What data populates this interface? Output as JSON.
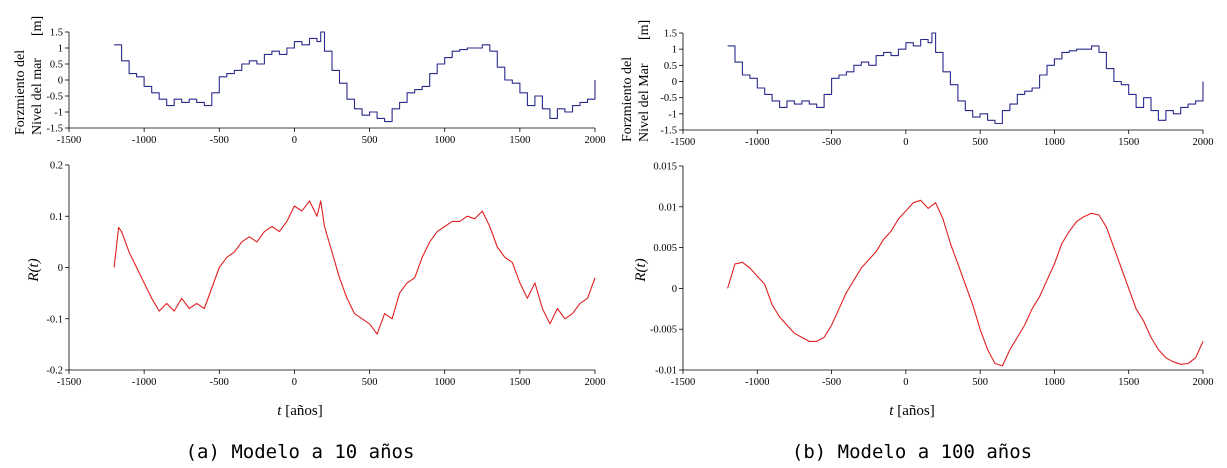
{
  "captions": [
    "(a) Modelo a 10 años",
    "(b) Modelo a 100 años"
  ],
  "colors": {
    "forcing": "#2a2a8c",
    "response": "#e02020"
  },
  "chart_data": [
    {
      "type": "line",
      "panel": "a-top",
      "ylabel_lines": [
        "Forzmiento del",
        "Nivel del mar"
      ],
      "yunit": "[m]",
      "xlim": [
        -1500,
        2000
      ],
      "ylim": [
        -1.5,
        1.5
      ],
      "xticks": [
        "-1500",
        "-1000",
        "-500",
        "0",
        "500",
        "1000",
        "1500",
        "2000"
      ],
      "yticks": [
        "1.5",
        "1",
        "0.5",
        "0",
        "-0.5",
        "-1",
        "-1.5"
      ],
      "step": true,
      "series": [
        {
          "x": [
            -1200,
            -1150,
            -1100,
            -1050,
            -1000,
            -950,
            -900,
            -850,
            -800,
            -750,
            -700,
            -650,
            -600,
            -550,
            -500,
            -450,
            -400,
            -350,
            -300,
            -250,
            -200,
            -150,
            -100,
            -50,
            0,
            50,
            100,
            150,
            175,
            200,
            250,
            300,
            350,
            400,
            450,
            500,
            550,
            600,
            650,
            700,
            750,
            800,
            850,
            900,
            950,
            1000,
            1050,
            1100,
            1150,
            1200,
            1250,
            1300,
            1350,
            1400,
            1450,
            1500,
            1550,
            1600,
            1650,
            1700,
            1750,
            1800,
            1850,
            1900,
            1950,
            2000
          ],
          "y": [
            1.1,
            0.6,
            0.2,
            0.1,
            -0.2,
            -0.4,
            -0.6,
            -0.8,
            -0.6,
            -0.7,
            -0.6,
            -0.7,
            -0.8,
            -0.4,
            0.1,
            0.2,
            0.3,
            0.5,
            0.6,
            0.5,
            0.8,
            0.9,
            0.8,
            1.0,
            1.2,
            1.1,
            1.3,
            1.2,
            1.5,
            0.9,
            0.3,
            -0.1,
            -0.6,
            -0.9,
            -1.1,
            -1.0,
            -1.2,
            -1.3,
            -0.9,
            -0.7,
            -0.4,
            -0.3,
            -0.2,
            0.2,
            0.5,
            0.7,
            0.9,
            0.95,
            1.0,
            1.0,
            1.1,
            0.9,
            0.4,
            0.0,
            -0.1,
            -0.4,
            -0.8,
            -0.5,
            -0.9,
            -1.2,
            -0.9,
            -1.0,
            -0.8,
            -0.7,
            -0.6,
            0.0
          ]
        }
      ]
    },
    {
      "type": "line",
      "panel": "a-bottom",
      "ylabel": "R(t)",
      "xlabel_var": "t",
      "xlabel_unit": "[años]",
      "xlim": [
        -1500,
        2000
      ],
      "ylim": [
        -0.2,
        0.2
      ],
      "xticks": [
        "-1500",
        "-1000",
        "-500",
        "0",
        "500",
        "1000",
        "1500",
        "2000"
      ],
      "yticks": [
        "0.2",
        "0.1",
        "0",
        "-0.1",
        "-0.2"
      ],
      "series": [
        {
          "x": [
            -1200,
            -1170,
            -1150,
            -1100,
            -1050,
            -1000,
            -950,
            -900,
            -850,
            -800,
            -750,
            -700,
            -650,
            -600,
            -550,
            -500,
            -450,
            -400,
            -350,
            -300,
            -250,
            -200,
            -150,
            -100,
            -50,
            0,
            50,
            100,
            150,
            175,
            200,
            250,
            300,
            350,
            400,
            450,
            500,
            550,
            600,
            650,
            700,
            750,
            800,
            850,
            900,
            950,
            1000,
            1050,
            1100,
            1150,
            1200,
            1250,
            1300,
            1350,
            1400,
            1450,
            1500,
            1550,
            1600,
            1650,
            1700,
            1750,
            1800,
            1850,
            1900,
            1950,
            2000
          ],
          "y": [
            0.0,
            0.078,
            0.07,
            0.03,
            0.0,
            -0.03,
            -0.06,
            -0.085,
            -0.07,
            -0.085,
            -0.06,
            -0.08,
            -0.07,
            -0.08,
            -0.04,
            0.0,
            0.02,
            0.03,
            0.05,
            0.06,
            0.05,
            0.07,
            0.08,
            0.07,
            0.09,
            0.12,
            0.11,
            0.13,
            0.1,
            0.13,
            0.08,
            0.03,
            -0.02,
            -0.06,
            -0.09,
            -0.1,
            -0.11,
            -0.13,
            -0.09,
            -0.1,
            -0.05,
            -0.03,
            -0.02,
            0.02,
            0.05,
            0.07,
            0.08,
            0.09,
            0.09,
            0.1,
            0.095,
            0.11,
            0.08,
            0.04,
            0.02,
            0.01,
            -0.03,
            -0.06,
            -0.03,
            -0.08,
            -0.11,
            -0.08,
            -0.1,
            -0.09,
            -0.07,
            -0.06,
            -0.02
          ]
        }
      ]
    },
    {
      "type": "line",
      "panel": "b-top",
      "ylabel_lines": [
        "Forzmiento del",
        "Nivel del Mar"
      ],
      "yunit": "[m]",
      "xlim": [
        -1500,
        2000
      ],
      "ylim": [
        -1.5,
        1.5
      ],
      "xticks": [
        "-1500",
        "-1000",
        "-500",
        "0",
        "500",
        "1000",
        "1500",
        "2000"
      ],
      "yticks": [
        "1.5",
        "1",
        "0.5",
        "0",
        "-0.5",
        "-1",
        "-1.5"
      ],
      "step": true,
      "series": [
        {
          "x": [
            -1200,
            -1150,
            -1100,
            -1050,
            -1000,
            -950,
            -900,
            -850,
            -800,
            -750,
            -700,
            -650,
            -600,
            -550,
            -500,
            -450,
            -400,
            -350,
            -300,
            -250,
            -200,
            -150,
            -100,
            -50,
            0,
            50,
            100,
            150,
            175,
            200,
            250,
            300,
            350,
            400,
            450,
            500,
            550,
            600,
            650,
            700,
            750,
            800,
            850,
            900,
            950,
            1000,
            1050,
            1100,
            1150,
            1200,
            1250,
            1300,
            1350,
            1400,
            1450,
            1500,
            1550,
            1600,
            1650,
            1700,
            1750,
            1800,
            1850,
            1900,
            1950,
            2000
          ],
          "y": [
            1.1,
            0.6,
            0.2,
            0.1,
            -0.2,
            -0.4,
            -0.6,
            -0.8,
            -0.6,
            -0.7,
            -0.6,
            -0.7,
            -0.8,
            -0.4,
            0.1,
            0.2,
            0.3,
            0.5,
            0.6,
            0.5,
            0.8,
            0.9,
            0.8,
            1.0,
            1.2,
            1.1,
            1.3,
            1.2,
            1.5,
            0.9,
            0.3,
            -0.1,
            -0.6,
            -0.9,
            -1.1,
            -1.0,
            -1.2,
            -1.3,
            -0.9,
            -0.7,
            -0.4,
            -0.3,
            -0.2,
            0.2,
            0.5,
            0.7,
            0.9,
            0.95,
            1.0,
            1.0,
            1.1,
            0.9,
            0.4,
            0.0,
            -0.1,
            -0.4,
            -0.8,
            -0.5,
            -0.9,
            -1.2,
            -0.9,
            -1.0,
            -0.8,
            -0.7,
            -0.6,
            0.0
          ]
        }
      ]
    },
    {
      "type": "line",
      "panel": "b-bottom",
      "ylabel": "R(t)",
      "xlabel_var": "t",
      "xlabel_unit": "[años]",
      "xlim": [
        -1500,
        2000
      ],
      "ylim": [
        -0.01,
        0.015
      ],
      "xticks": [
        "-1500",
        "-1000",
        "-500",
        "0",
        "500",
        "1000",
        "1500",
        "2000"
      ],
      "yticks": [
        "0.015",
        "0.01",
        "0.005",
        "0",
        "-0.005",
        "-0.01"
      ],
      "series": [
        {
          "x": [
            -1200,
            -1150,
            -1100,
            -1050,
            -1000,
            -950,
            -900,
            -850,
            -800,
            -750,
            -700,
            -650,
            -600,
            -550,
            -500,
            -450,
            -400,
            -350,
            -300,
            -250,
            -200,
            -150,
            -100,
            -50,
            0,
            50,
            100,
            150,
            200,
            250,
            300,
            350,
            400,
            450,
            500,
            550,
            600,
            650,
            700,
            750,
            800,
            850,
            900,
            950,
            1000,
            1050,
            1100,
            1150,
            1200,
            1250,
            1300,
            1350,
            1400,
            1450,
            1500,
            1550,
            1600,
            1650,
            1700,
            1750,
            1800,
            1850,
            1900,
            1950,
            2000
          ],
          "y": [
            0.0,
            0.003,
            0.0032,
            0.0025,
            0.0015,
            0.0005,
            -0.002,
            -0.0035,
            -0.0045,
            -0.0055,
            -0.006,
            -0.0065,
            -0.0065,
            -0.006,
            -0.0045,
            -0.0025,
            -0.0005,
            0.001,
            0.0025,
            0.0035,
            0.0045,
            0.006,
            0.007,
            0.0085,
            0.0095,
            0.0105,
            0.0108,
            0.0098,
            0.0105,
            0.0085,
            0.0055,
            0.003,
            0.0005,
            -0.002,
            -0.005,
            -0.0075,
            -0.0092,
            -0.0095,
            -0.0075,
            -0.006,
            -0.0045,
            -0.0025,
            -0.001,
            0.001,
            0.003,
            0.0055,
            0.007,
            0.0082,
            0.0088,
            0.0092,
            0.009,
            0.0075,
            0.005,
            0.0025,
            0.0,
            -0.0025,
            -0.004,
            -0.006,
            -0.0075,
            -0.0085,
            -0.009,
            -0.0093,
            -0.0092,
            -0.0085,
            -0.0065
          ]
        }
      ]
    }
  ]
}
